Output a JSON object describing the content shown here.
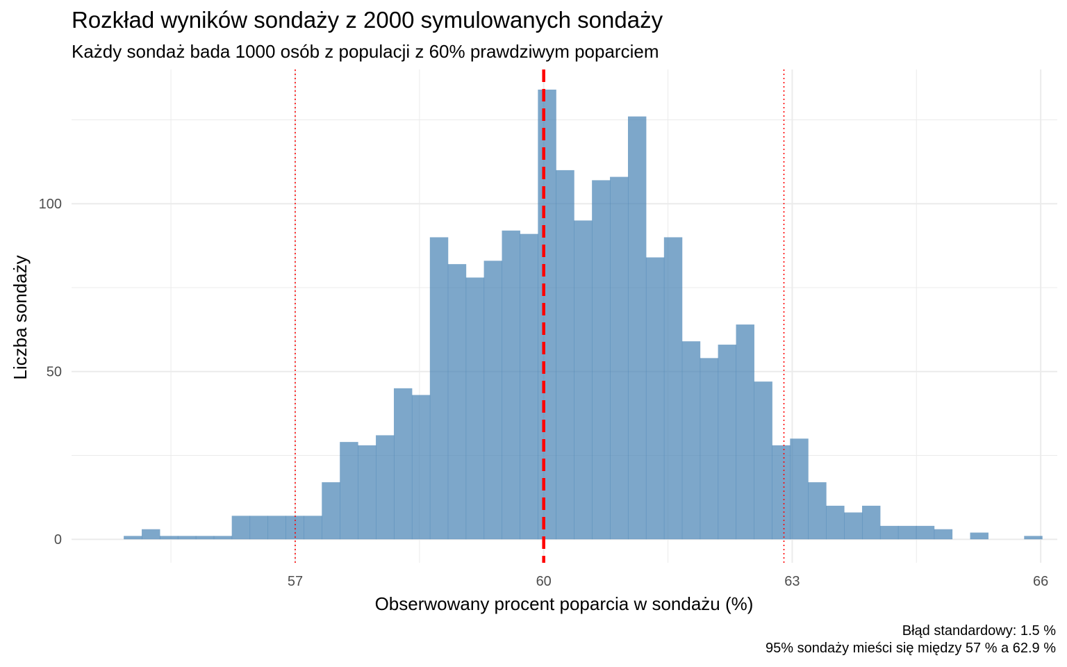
{
  "chart_data": {
    "type": "bar",
    "title": "Rozkład wyników sondaży z 2000 symulowanych sondaży",
    "subtitle": "Każdy sondaż bada 1000 osób z populacji z 60% prawdziwym poparciem",
    "xlabel": "Obserwowany procent poparcia w sondażu (%)",
    "ylabel": "Liczba sondaży",
    "caption_lines": [
      "Błąd standardowy: 1.5 %",
      "95% sondaży mieści się między 57 % a 62.9 %"
    ],
    "xlim": [
      54.3,
      66.2
    ],
    "ylim": [
      -7,
      140
    ],
    "x_ticks": [
      57,
      60,
      63,
      66
    ],
    "y_ticks": [
      0,
      50,
      100
    ],
    "x_minor_ticks": [
      55.5,
      58.5,
      61.5,
      64.5
    ],
    "y_minor_ticks": [
      25,
      75,
      125
    ],
    "bin_width": 0.2174,
    "bin_start": 54.93,
    "counts": [
      1,
      3,
      1,
      1,
      1,
      1,
      7,
      7,
      7,
      7,
      7,
      17,
      29,
      28,
      31,
      45,
      43,
      90,
      82,
      78,
      83,
      92,
      91,
      134,
      110,
      95,
      107,
      108,
      126,
      84,
      90,
      59,
      54,
      58,
      64,
      47,
      28,
      30,
      17,
      10,
      8,
      10,
      4,
      4,
      4,
      3,
      0,
      2,
      0,
      0,
      1
    ],
    "mean_line": 60,
    "ci_lines": [
      57,
      62.9
    ],
    "grid": true,
    "colors": {
      "bars": "#4682b4",
      "bar_opacity": 0.7,
      "mean_line": "#ff0000",
      "ci_lines": "#ff0000",
      "grid": "#ebebeb"
    }
  }
}
